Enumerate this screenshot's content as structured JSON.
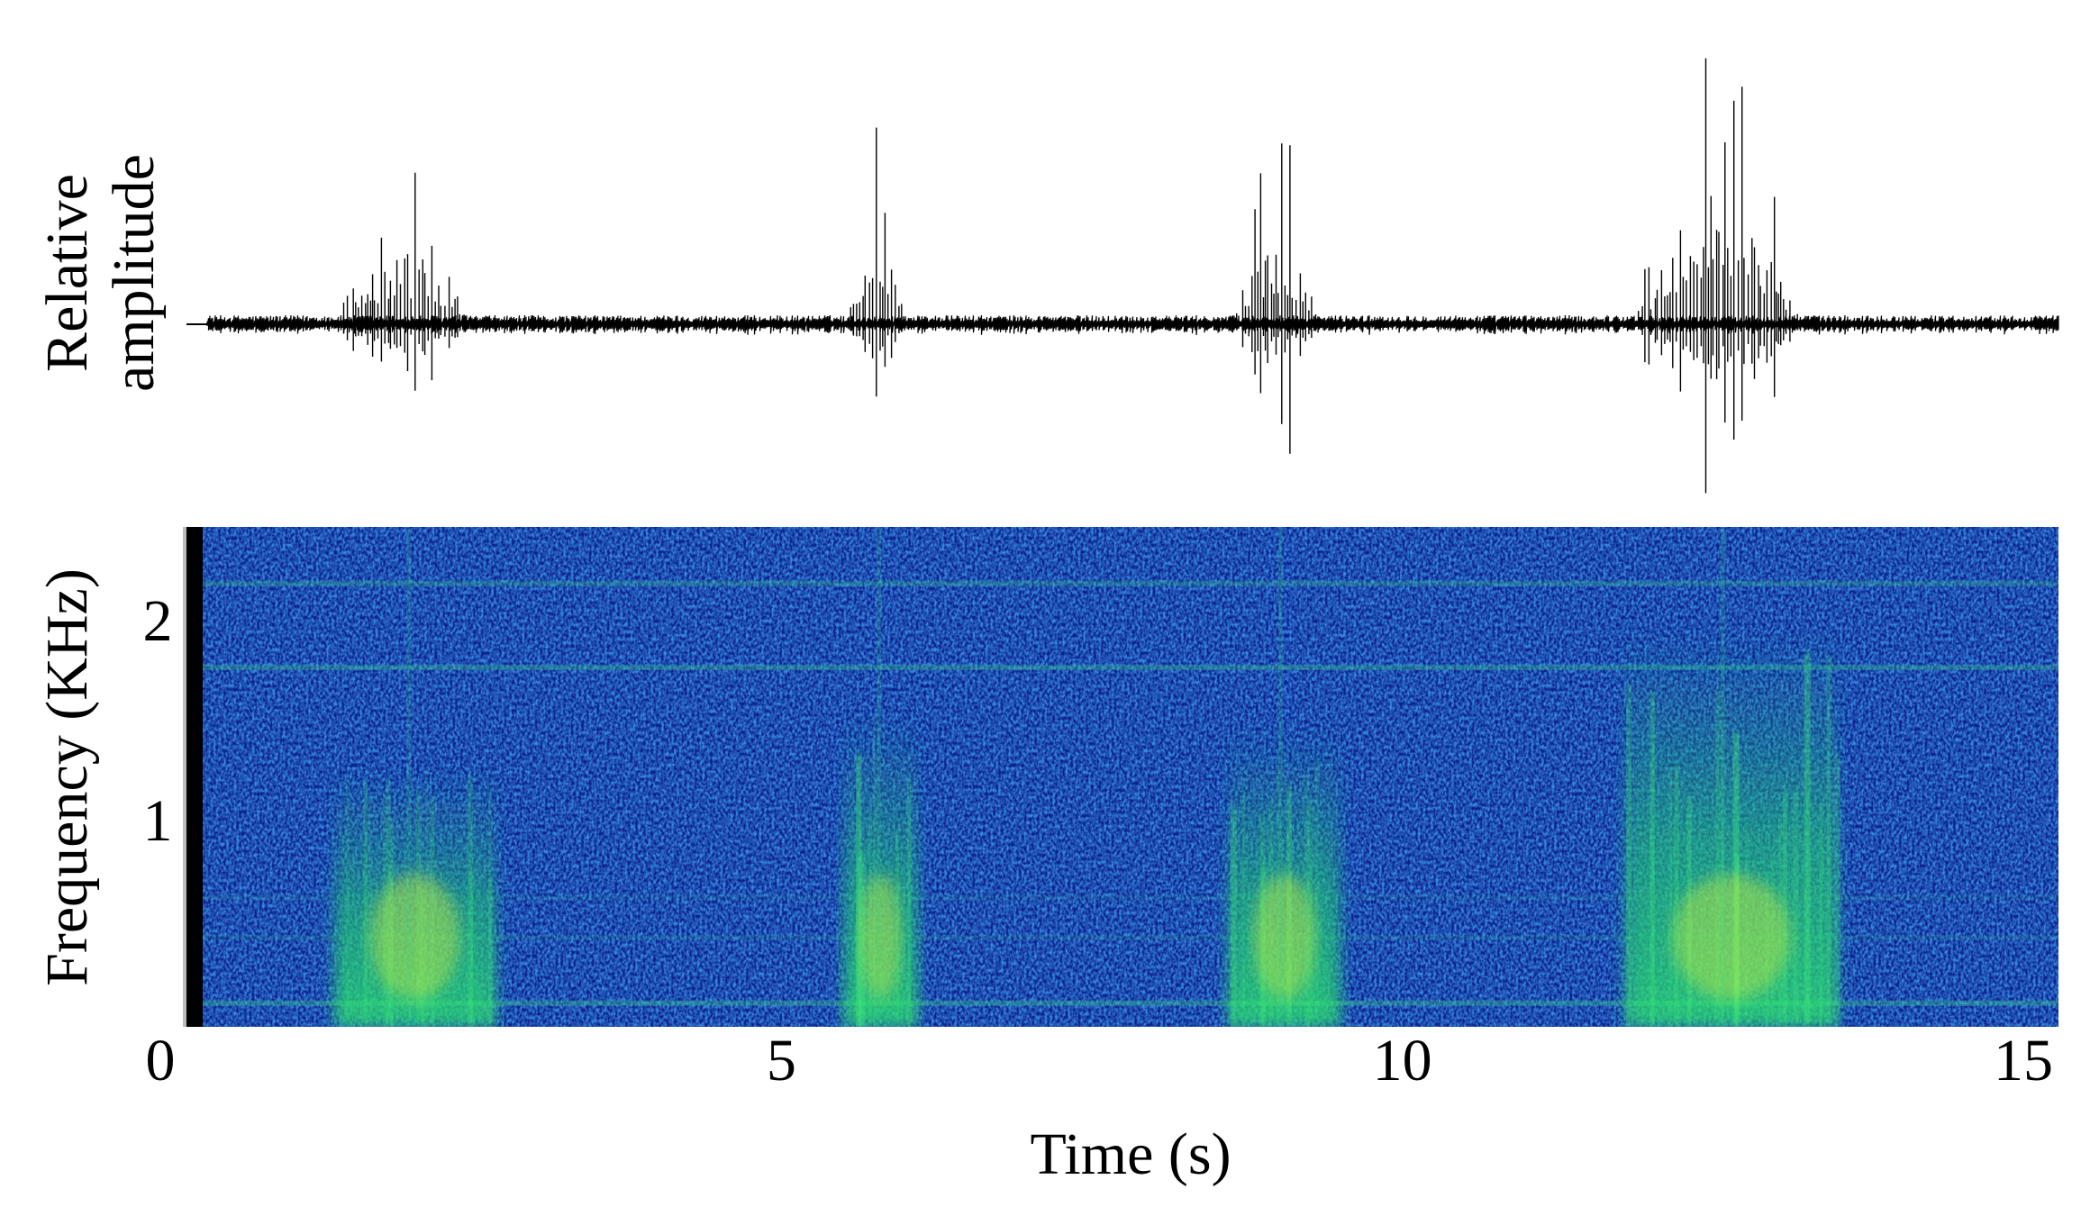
{
  "chart_data": {
    "type": "spectrogram",
    "amplitude_label": [
      "Relative",
      "amplitude"
    ],
    "ylabel": "Frequency (KHz)",
    "xlabel": "Time (s)",
    "xlim": [
      0,
      15.2
    ],
    "xticks": [
      0,
      5,
      10,
      15
    ],
    "ylim": [
      0,
      2.5
    ],
    "yticks": [
      1,
      2
    ],
    "bursts": [
      {
        "start": 1.4,
        "end": 2.7,
        "amplitude": 0.56
      },
      {
        "start": 5.5,
        "end": 6.1,
        "amplitude": 0.73
      },
      {
        "start": 8.6,
        "end": 9.5,
        "amplitude": 0.69
      },
      {
        "start": 11.8,
        "end": 13.5,
        "amplitude": 1.0
      }
    ]
  }
}
